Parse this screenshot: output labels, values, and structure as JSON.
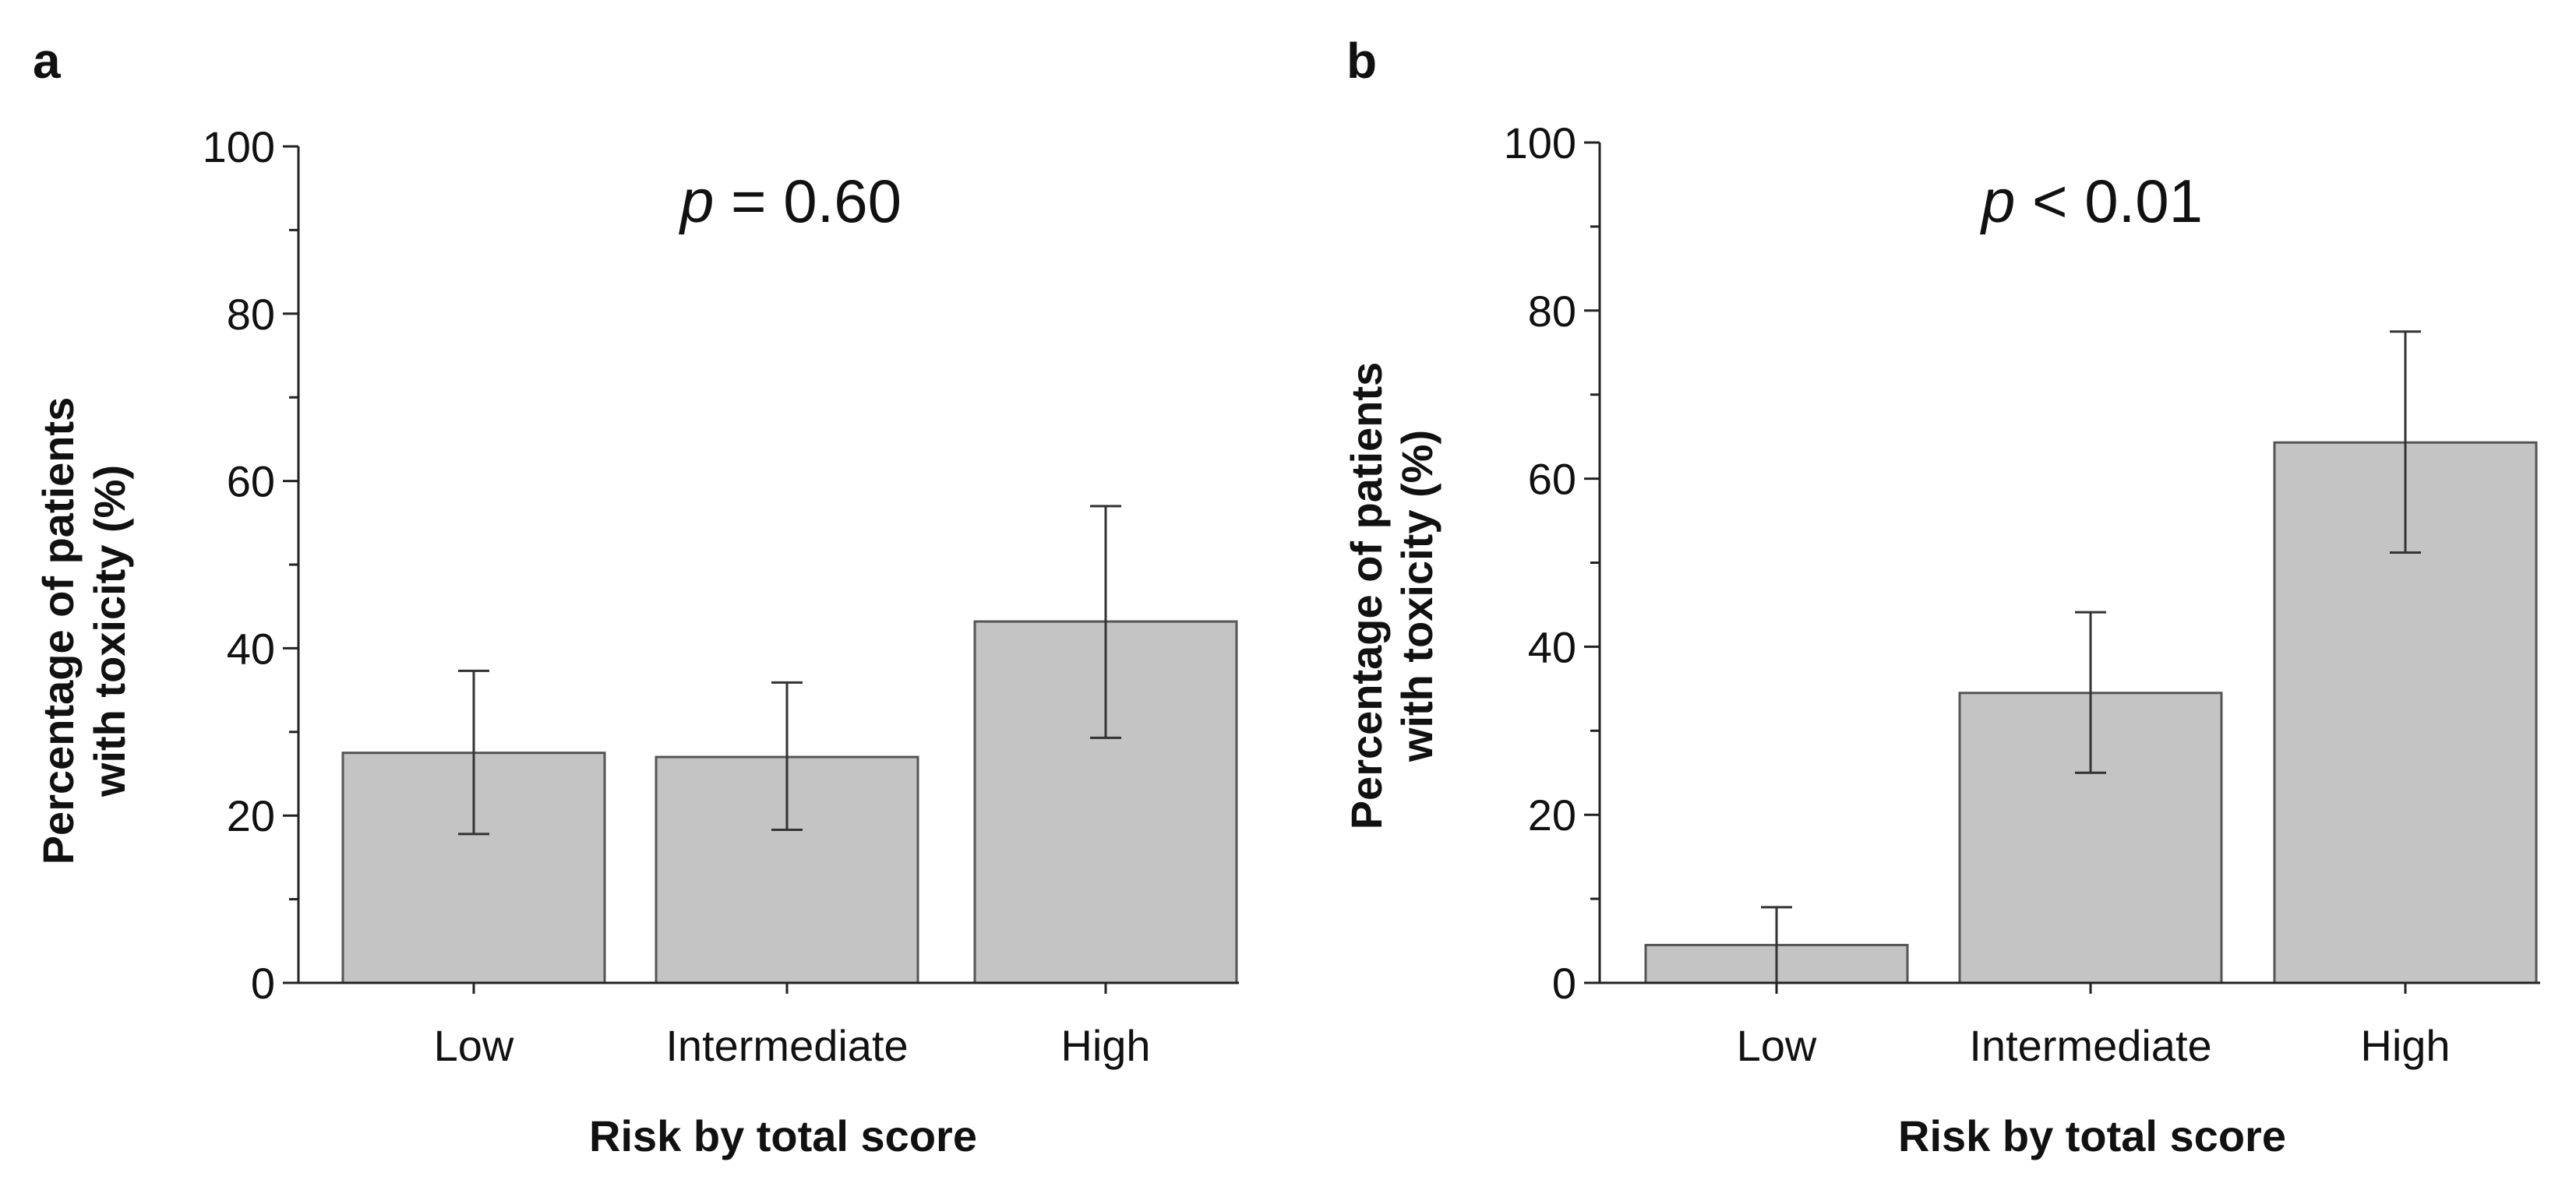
{
  "chart_data": [
    {
      "panel_label": "a",
      "type": "bar",
      "annotation_italic": "p",
      "annotation_rest": " = 0.60",
      "categories": [
        "Low",
        "Intermediate",
        "High"
      ],
      "values": [
        27.5,
        27.0,
        43.2
      ],
      "error_low": [
        17.8,
        18.3,
        29.3
      ],
      "error_high": [
        37.3,
        35.9,
        57.0
      ],
      "ylim": [
        0,
        100
      ],
      "yticks": [
        0,
        20,
        40,
        60,
        80,
        100
      ],
      "ytick_labels": [
        "0",
        "20",
        "40",
        "60",
        "80",
        "100"
      ],
      "minor_tick_step": 10,
      "xlabel": "Risk by total score",
      "ylabel_line1": "Percentage of patients",
      "ylabel_line2": "with toxicity (%)",
      "bar_color": "#c4c4c4"
    },
    {
      "panel_label": "b",
      "type": "bar",
      "annotation_italic": "p",
      "annotation_rest": " < 0.01",
      "categories": [
        "Low",
        "Intermediate",
        "High"
      ],
      "values": [
        4.5,
        34.5,
        64.3
      ],
      "error_low": [
        0,
        25.0,
        51.2
      ],
      "error_high": [
        9.0,
        44.1,
        77.5
      ],
      "ylim": [
        0,
        100
      ],
      "yticks": [
        0,
        20,
        40,
        60,
        80,
        100
      ],
      "ytick_labels": [
        "0",
        "20",
        "40",
        "60",
        "80",
        "100"
      ],
      "minor_tick_step": 10,
      "xlabel": "Risk by total score",
      "ylabel_line1": "Percentage of patients",
      "ylabel_line2": "with toxicity (%)",
      "bar_color": "#c4c4c4"
    }
  ]
}
